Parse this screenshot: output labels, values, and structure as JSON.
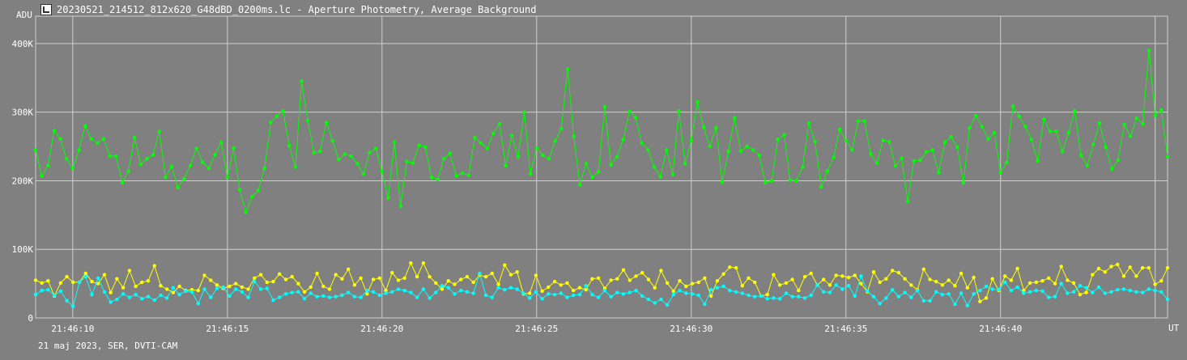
{
  "window": {
    "title": "20230521_214512_812x620_G48dBD_0200ms.lc - Aperture Photometry, Average Background",
    "icon": "photometry-app-icon"
  },
  "footer": {
    "text": "21 maj 2023, SER, DVTI-CAM"
  },
  "chart_data": {
    "type": "line",
    "ylabel": "ADU",
    "xlabel": "UT",
    "ylim": [
      0,
      440000
    ],
    "xlim": [
      0,
      36.6
    ],
    "y_ticks": [
      {
        "value": 0,
        "label": "0"
      },
      {
        "value": 100000,
        "label": "100K"
      },
      {
        "value": 200000,
        "label": "200K"
      },
      {
        "value": 300000,
        "label": "300K"
      },
      {
        "value": 400000,
        "label": "400K"
      }
    ],
    "x_ticks": [
      {
        "value": 1.2,
        "label": "21:46:10"
      },
      {
        "value": 6.2,
        "label": "21:46:15"
      },
      {
        "value": 11.2,
        "label": "21:46:20"
      },
      {
        "value": 16.2,
        "label": "21:46:25"
      },
      {
        "value": 21.2,
        "label": "21:46:30"
      },
      {
        "value": 26.2,
        "label": "21:46:35"
      },
      {
        "value": 31.2,
        "label": "21:46:40"
      },
      {
        "value": 36.2,
        "label": ""
      }
    ],
    "grid": true,
    "background": "#808080",
    "series": [
      {
        "color": "#00ff00",
        "values": [
          245000,
          207000,
          222000,
          273000,
          261000,
          232000,
          218000,
          245000,
          280000,
          261000,
          255000,
          261000,
          236000,
          236000,
          197000,
          214000,
          263000,
          224000,
          232000,
          238000,
          272000,
          205000,
          221000,
          190000,
          203000,
          222000,
          247000,
          227000,
          218000,
          238000,
          256000,
          205000,
          248000,
          187000,
          154000,
          177000,
          186000,
          218000,
          285000,
          294000,
          302000,
          251000,
          220000,
          345000,
          288000,
          241000,
          243000,
          285000,
          258000,
          231000,
          239000,
          236000,
          225000,
          210000,
          241000,
          247000,
          214000,
          175000,
          256000,
          163000,
          228000,
          226000,
          252000,
          249000,
          205000,
          202000,
          232000,
          240000,
          207000,
          211000,
          208000,
          263000,
          255000,
          247000,
          269000,
          283000,
          222000,
          266000,
          235000,
          300000,
          210000,
          248000,
          237000,
          232000,
          258000,
          276000,
          363000,
          265000,
          194000,
          225000,
          205000,
          213000,
          308000,
          223000,
          235000,
          260000,
          301000,
          292000,
          255000,
          245000,
          220000,
          206000,
          245000,
          209000,
          302000,
          225000,
          259000,
          315000,
          278000,
          250000,
          277000,
          198000,
          243000,
          292000,
          243000,
          250000,
          245000,
          237000,
          197000,
          200000,
          260000,
          267000,
          201000,
          200000,
          220000,
          284000,
          257000,
          191000,
          214000,
          234000,
          275000,
          259000,
          245000,
          287000,
          287000,
          239000,
          226000,
          259000,
          257000,
          222000,
          233000,
          170000,
          229000,
          230000,
          242000,
          245000,
          212000,
          256000,
          264000,
          249000,
          197000,
          277000,
          295000,
          279000,
          261000,
          270000,
          212000,
          227000,
          309000,
          294000,
          279000,
          260000,
          229000,
          290000,
          272000,
          272000,
          243000,
          270000,
          302000,
          237000,
          222000,
          253000,
          284000,
          249000,
          217000,
          230000,
          282000,
          265000,
          291000,
          283000,
          390000,
          295000,
          303000,
          235000
        ]
      },
      {
        "color": "#ffff00",
        "values": [
          55000,
          51000,
          54000,
          32000,
          51000,
          60000,
          52000,
          52000,
          65000,
          53000,
          50000,
          63000,
          37000,
          57000,
          44000,
          69000,
          46000,
          52000,
          54000,
          76000,
          47000,
          42000,
          37000,
          46000,
          40000,
          41000,
          40000,
          62000,
          55000,
          48000,
          43000,
          46000,
          50000,
          45000,
          42000,
          58000,
          63000,
          52000,
          53000,
          64000,
          56000,
          60000,
          50000,
          38000,
          45000,
          65000,
          46000,
          42000,
          63000,
          57000,
          71000,
          48000,
          58000,
          35000,
          56000,
          58000,
          40000,
          66000,
          55000,
          58000,
          80000,
          60000,
          80000,
          60000,
          51000,
          42000,
          54000,
          49000,
          56000,
          60000,
          52000,
          62000,
          60000,
          65000,
          49000,
          77000,
          63000,
          67000,
          35000,
          36000,
          62000,
          39000,
          45000,
          53000,
          48000,
          51000,
          40000,
          44000,
          41000,
          57000,
          58000,
          43000,
          55000,
          57000,
          70000,
          55000,
          61000,
          66000,
          56000,
          44000,
          69000,
          51000,
          39000,
          54000,
          46000,
          50000,
          52000,
          58000,
          32000,
          54000,
          64000,
          74000,
          73000,
          47000,
          58000,
          52000,
          32000,
          34000,
          63000,
          48000,
          51000,
          56000,
          40000,
          60000,
          65000,
          48000,
          56000,
          48000,
          62000,
          61000,
          59000,
          62000,
          50000,
          38000,
          67000,
          52000,
          57000,
          69000,
          66000,
          57000,
          48000,
          41000,
          71000,
          56000,
          53000,
          48000,
          55000,
          47000,
          65000,
          44000,
          59000,
          24000,
          29000,
          57000,
          40000,
          61000,
          55000,
          72000,
          40000,
          51000,
          52000,
          54000,
          58000,
          50000,
          75000,
          55000,
          51000,
          34000,
          37000,
          63000,
          72000,
          67000,
          75000,
          78000,
          61000,
          74000,
          61000,
          73000,
          73000,
          49000,
          54000,
          73000
        ]
      },
      {
        "color": "#00ffff",
        "values": [
          34000,
          40000,
          41000,
          33000,
          39000,
          25000,
          17000,
          52000,
          60000,
          34000,
          58000,
          38000,
          23000,
          27000,
          35000,
          30000,
          34000,
          28000,
          31000,
          26000,
          33000,
          29000,
          44000,
          34000,
          39000,
          38000,
          21000,
          42000,
          30000,
          43000,
          45000,
          32000,
          42000,
          38000,
          30000,
          53000,
          42000,
          43000,
          26000,
          30000,
          35000,
          37000,
          38000,
          28000,
          36000,
          31000,
          32000,
          30000,
          31000,
          33000,
          37000,
          31000,
          30000,
          40000,
          38000,
          33000,
          36000,
          38000,
          42000,
          40000,
          37000,
          30000,
          42000,
          29000,
          37000,
          47000,
          44000,
          35000,
          40000,
          38000,
          36000,
          65000,
          33000,
          30000,
          44000,
          41000,
          44000,
          42000,
          36000,
          29000,
          38000,
          28000,
          35000,
          34000,
          36000,
          30000,
          33000,
          34000,
          47000,
          34000,
          30000,
          40000,
          31000,
          37000,
          35000,
          37000,
          40000,
          32000,
          27000,
          22000,
          27000,
          19000,
          34000,
          40000,
          36000,
          35000,
          33000,
          20000,
          41000,
          44000,
          46000,
          40000,
          38000,
          36000,
          33000,
          31000,
          32000,
          28000,
          29000,
          28000,
          36000,
          31000,
          31000,
          29000,
          33000,
          48000,
          38000,
          37000,
          48000,
          42000,
          47000,
          32000,
          61000,
          39000,
          31000,
          21000,
          29000,
          41000,
          31000,
          37000,
          30000,
          40000,
          25000,
          25000,
          38000,
          34000,
          35000,
          20000,
          36000,
          18000,
          35000,
          40000,
          46000,
          42000,
          41000,
          52000,
          40000,
          45000,
          36000,
          38000,
          40000,
          39000,
          30000,
          31000,
          50000,
          36000,
          38000,
          47000,
          44000,
          37000,
          45000,
          36000,
          38000,
          41000,
          42000,
          40000,
          38000,
          37000,
          42000,
          40000,
          38000,
          27000
        ]
      }
    ]
  }
}
